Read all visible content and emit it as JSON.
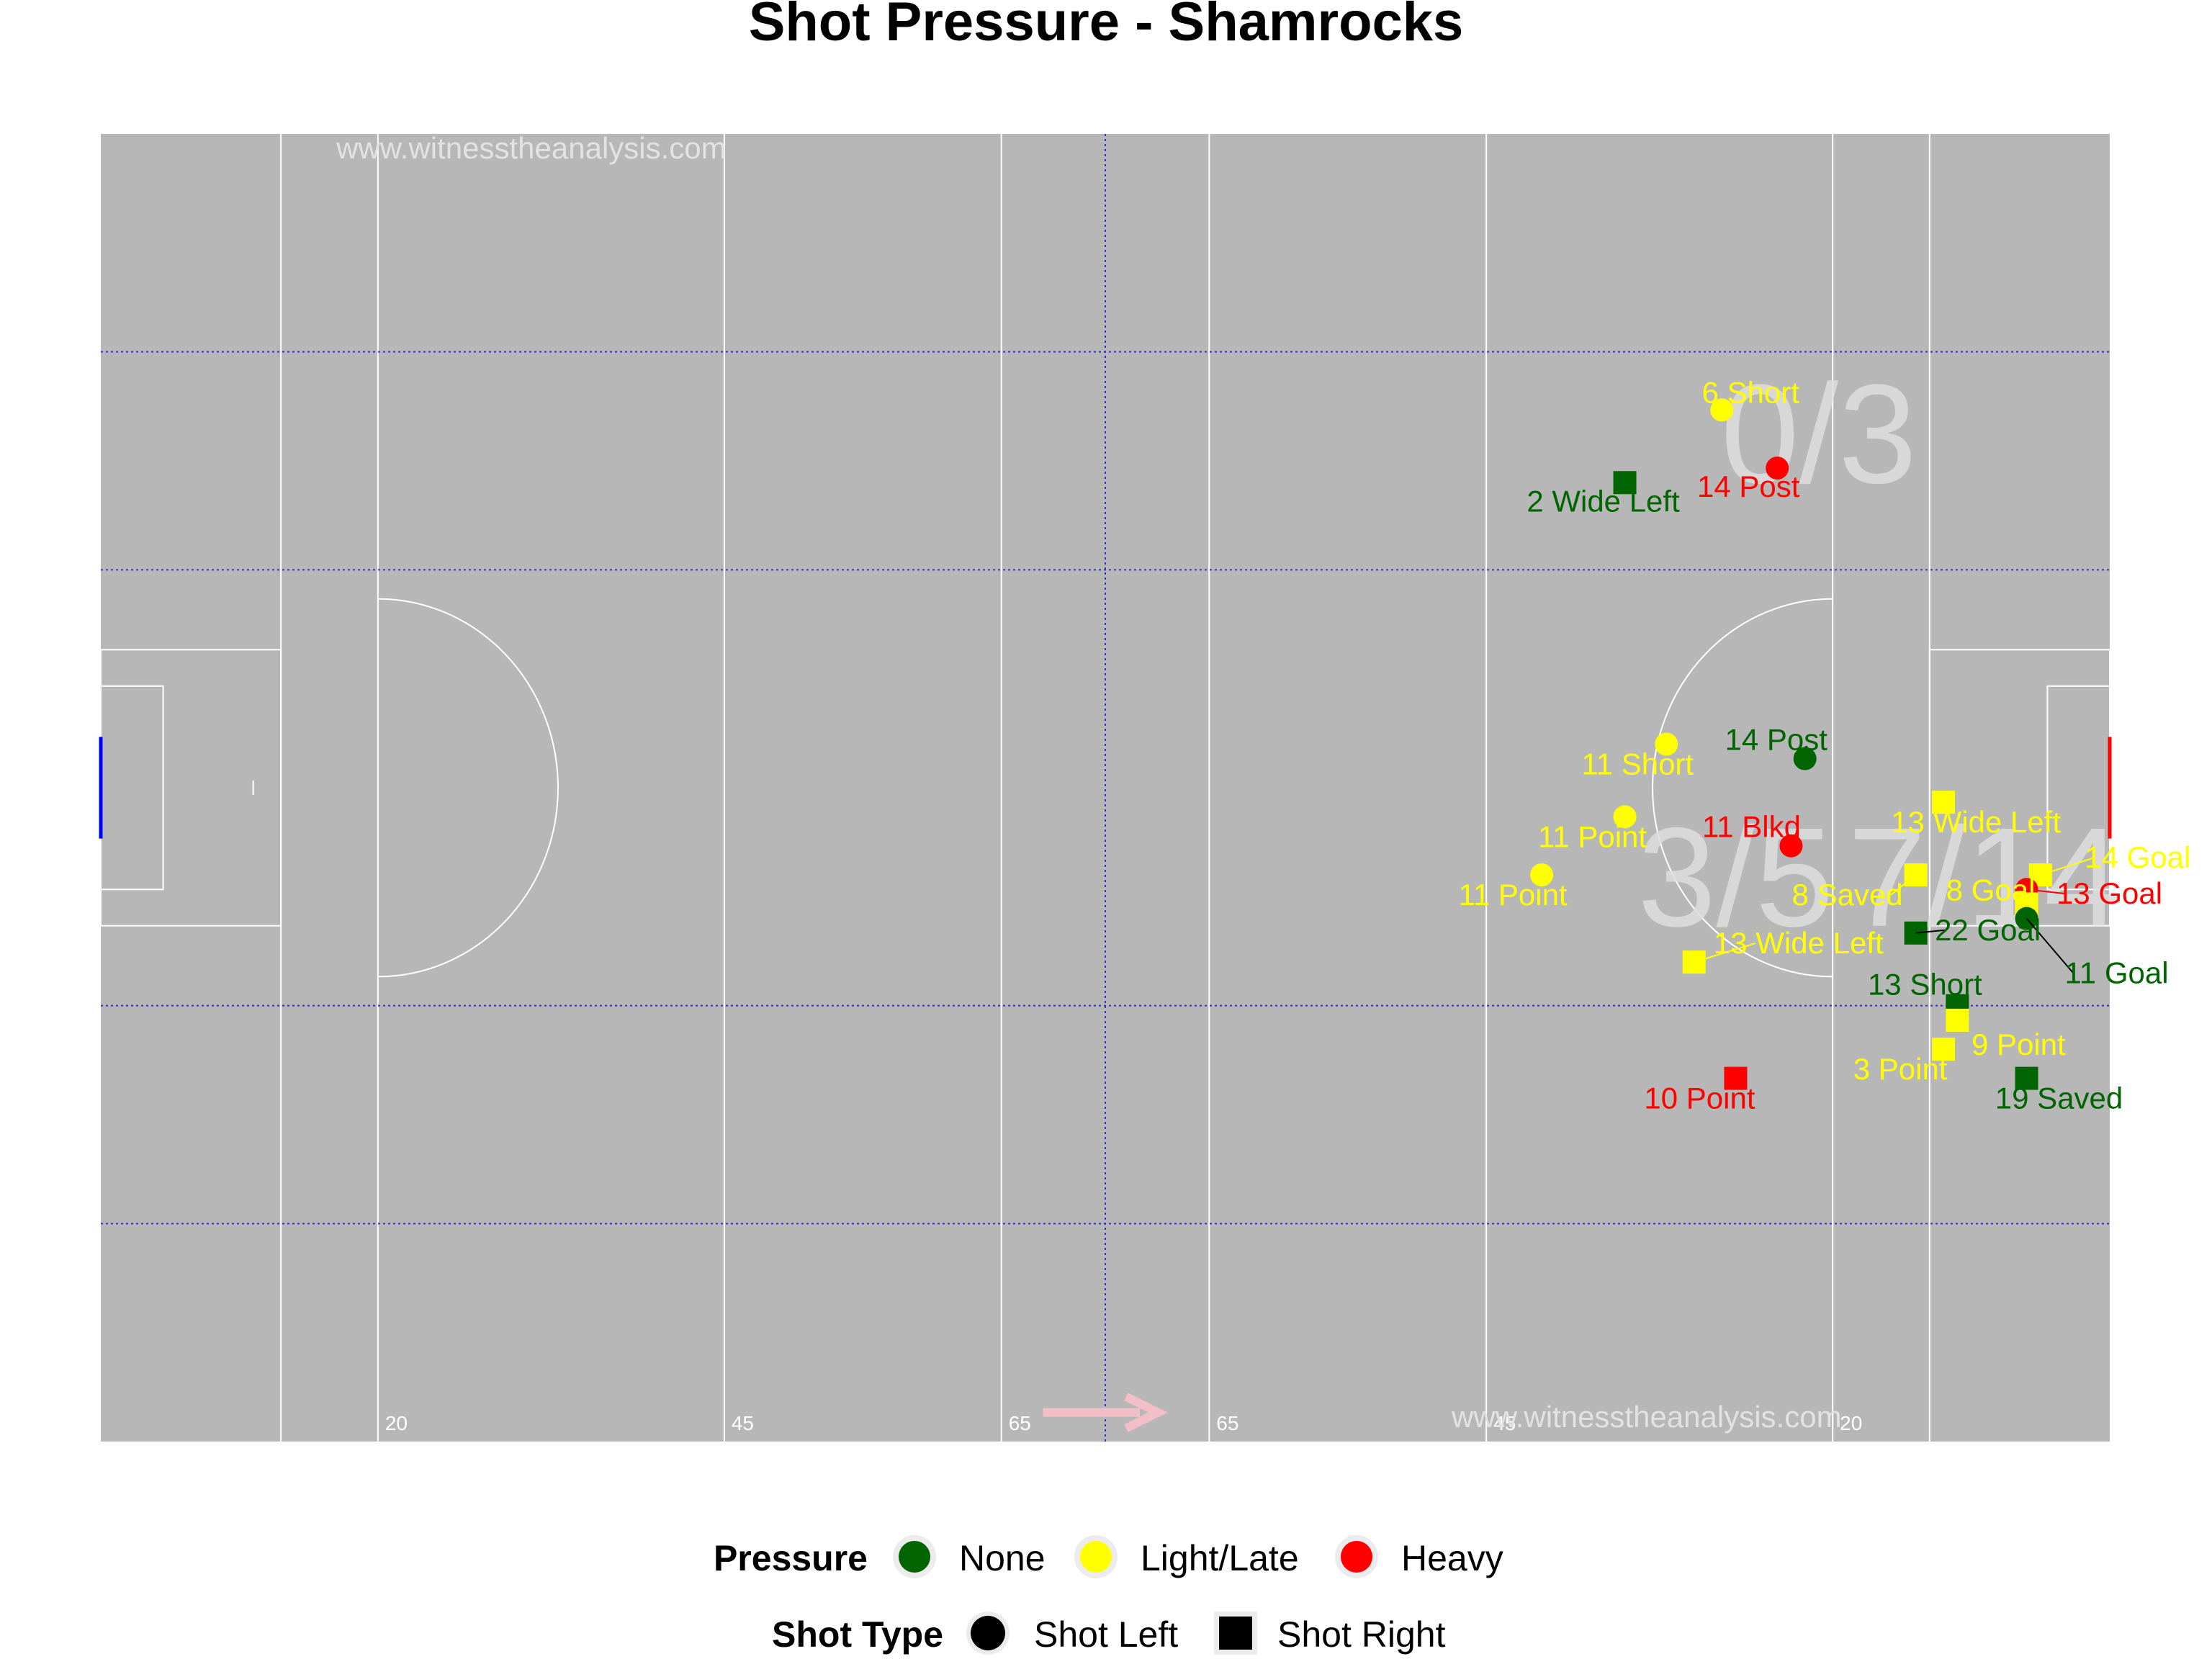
{
  "chart_data": {
    "type": "scatter",
    "title": "Shot Pressure - Shamrocks",
    "watermark": "www.witnesstheanalysis.com",
    "distance_labels": [
      "20",
      "45",
      "65",
      "65",
      "45",
      "20"
    ],
    "zone_scores": [
      "0/3",
      "3/5",
      "7/14"
    ],
    "legend": {
      "pressure": {
        "title": "Pressure",
        "items": [
          {
            "label": "None",
            "color": "#006400"
          },
          {
            "label": "Light/Late",
            "color": "#ffff00"
          },
          {
            "label": "Heavy",
            "color": "#ff0000"
          }
        ]
      },
      "shot_type": {
        "title": "Shot Type",
        "items": [
          {
            "label": "Shot Left",
            "shape": "circle"
          },
          {
            "label": "Shot Right",
            "shape": "square"
          }
        ]
      }
    },
    "colors": {
      "None": "#006400",
      "Light/Late": "#ffff00",
      "Heavy": "#ff0000",
      "pitch": "#b7b7b7",
      "lines": "#ffffff",
      "guides": "#3333cc",
      "arrow": "#f2bfc6",
      "own_goal": "#0000ff"
    },
    "points": [
      {
        "x": 28,
        "y": 71,
        "label": "6 Short",
        "pressure": "Light/Late",
        "shot": "Shot Left"
      },
      {
        "x": 24,
        "y": 67,
        "label": "14 Post",
        "pressure": "Heavy",
        "shot": "Shot Left"
      },
      {
        "x": 35,
        "y": 66,
        "label": "2 Wide Left",
        "pressure": "None",
        "shot": "Shot Right"
      },
      {
        "x": 32,
        "y": 48,
        "label": "11 Short",
        "pressure": "Light/Late",
        "shot": "Shot Left"
      },
      {
        "x": 22,
        "y": 47,
        "label": "14 Post",
        "pressure": "None",
        "shot": "Shot Left"
      },
      {
        "x": 12,
        "y": 44,
        "label": "13 Wide Left",
        "pressure": "Light/Late",
        "shot": "Shot Right"
      },
      {
        "x": 35,
        "y": 43,
        "label": "11 Point",
        "pressure": "Light/Late",
        "shot": "Shot Left"
      },
      {
        "x": 23,
        "y": 41,
        "label": "11 Blkd",
        "pressure": "Heavy",
        "shot": "Shot Left"
      },
      {
        "x": 41,
        "y": 39,
        "label": "11 Point",
        "pressure": "Light/Late",
        "shot": "Shot Left"
      },
      {
        "x": 14,
        "y": 39,
        "label": "8 Saved",
        "pressure": "Light/Late",
        "shot": "Shot Right"
      },
      {
        "x": 5,
        "y": 39,
        "label": "14 Goal",
        "pressure": "Light/Late",
        "shot": "Shot Right"
      },
      {
        "x": 6,
        "y": 38,
        "label": "13 Goal",
        "pressure": "Heavy",
        "shot": "Shot Left"
      },
      {
        "x": 6,
        "y": 37,
        "label": "8 Goal",
        "pressure": "Light/Late",
        "shot": "Shot Right"
      },
      {
        "x": 6,
        "y": 36,
        "label": "11 Goal",
        "pressure": "None",
        "shot": "Shot Left"
      },
      {
        "x": 14,
        "y": 35,
        "label": "22 Goal",
        "pressure": "None",
        "shot": "Shot Right"
      },
      {
        "x": 30,
        "y": 33,
        "label": "13 Wide Left",
        "pressure": "Light/Late",
        "shot": "Shot Right"
      },
      {
        "x": 11,
        "y": 30,
        "label": "13 Short",
        "pressure": "None",
        "shot": "Shot Right"
      },
      {
        "x": 11,
        "y": 29,
        "label": "9 Point",
        "pressure": "Light/Late",
        "shot": "Shot Right"
      },
      {
        "x": 12,
        "y": 27,
        "label": "3 Point",
        "pressure": "Light/Late",
        "shot": "Shot Right"
      },
      {
        "x": 27,
        "y": 25,
        "label": "10 Point",
        "pressure": "Heavy",
        "shot": "Shot Right"
      },
      {
        "x": 6,
        "y": 25,
        "label": "19 Saved",
        "pressure": "None",
        "shot": "Shot Right"
      }
    ]
  }
}
